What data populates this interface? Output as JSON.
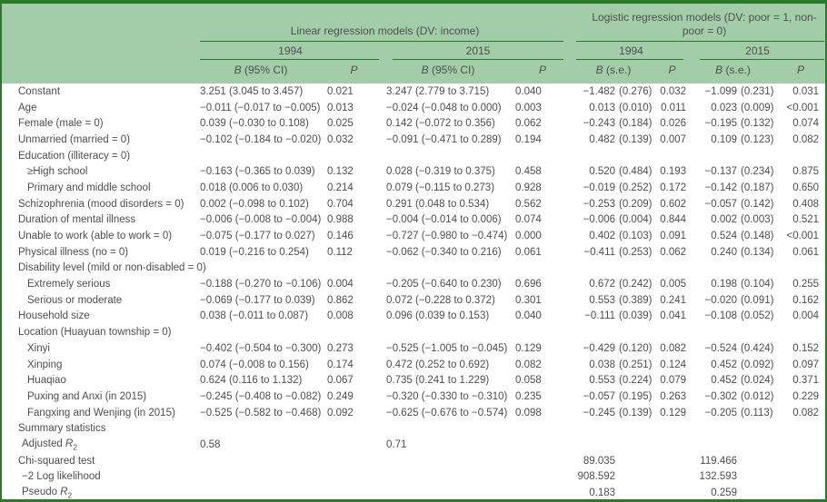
{
  "table": {
    "header": {
      "linear_title": "Linear regression models (DV: income)",
      "logistic_title": "Logistic regression models (DV: poor = 1, non-poor = 0)",
      "year_linear_1994": "1994",
      "year_linear_2015": "2015",
      "year_logistic_1994": "1994",
      "year_logistic_2015": "2015",
      "b_label": "B",
      "ci_suffix": " (95% CI)",
      "se_suffix": " (s.e.)",
      "p_label": "P"
    },
    "colors": {
      "header_bg": "#a3cda8",
      "rule_green": "#2a7a2c",
      "text": "#4d4e50"
    },
    "rows": [
      {
        "label": "Constant",
        "indent": 0,
        "cells": [
          "3.251 (3.045 to 3.457)",
          "0.021",
          "3.247 (2.779 to 3.715)",
          "0.040",
          "−1.482",
          "(0.276)",
          "0.032",
          "−1.099",
          "(0.231)",
          "0.031"
        ]
      },
      {
        "label": "Age",
        "indent": 0,
        "cells": [
          "−0.011 (−0.017 to −0.005)",
          "0.013",
          "−0.024 (−0.048 to 0.000)",
          "0.003",
          "0.013",
          "(0.010)",
          "0.011",
          "0.023",
          "(0.009)",
          "<0.001"
        ]
      },
      {
        "label": "Female (male = 0)",
        "indent": 0,
        "cells": [
          "0.039 (−0.030 to 0.108)",
          "0.025",
          "0.142 (−0.072 to 0.356)",
          "0.062",
          "−0.243",
          "(0.184)",
          "0.026",
          "−0.195",
          "(0.132)",
          "0.074"
        ]
      },
      {
        "label": "Unmarried (married = 0)",
        "indent": 0,
        "cells": [
          "−0.102 (−0.184 to −0.020)",
          "0.032",
          "−0.091 (−0.471 to 0.289)",
          "0.194",
          "0.482",
          "(0.139)",
          "0.007",
          "0.109",
          "(0.123)",
          "0.082"
        ]
      },
      {
        "label": "Education (illiteracy = 0)",
        "indent": 0,
        "cells": [
          "",
          "",
          "",
          "",
          "",
          "",
          "",
          "",
          "",
          ""
        ]
      },
      {
        "label": "≥High school",
        "indent": 2,
        "cells": [
          "−0.163 (−0.365 to 0.039)",
          "0.132",
          "0.028 (−0.319 to 0.375)",
          "0.458",
          "0.520",
          "(0.484)",
          "0.193",
          "−0.137",
          "(0.234)",
          "0.875"
        ]
      },
      {
        "label": "Primary and middle school",
        "indent": 2,
        "cells": [
          "0.018 (0.006 to 0.030)",
          "0.214",
          "0.079 (−0.115 to 0.273)",
          "0.928",
          "−0.019",
          "(0.252)",
          "0.172",
          "−0.142",
          "(0.187)",
          "0.650"
        ]
      },
      {
        "label": "Schizophrenia (mood disorders = 0)",
        "indent": 0,
        "cells": [
          "0.002 (−0.098 to 0.102)",
          "0.704",
          "0.291 (0.048 to 0.534)",
          "0.562",
          "−0.253",
          "(0.209)",
          "0.602",
          "−0.057",
          "(0.142)",
          "0.408"
        ]
      },
      {
        "label": "Duration of mental illness",
        "indent": 0,
        "cells": [
          "−0.006 (−0.008 to −0.004)",
          "0.988",
          "−0.004 (−0.014 to 0.006)",
          "0.074",
          "−0.006",
          "(0.004)",
          "0.844",
          "0.002",
          "(0.003)",
          "0.521"
        ]
      },
      {
        "label": "Unable to work (able to work = 0)",
        "indent": 0,
        "cells": [
          "−0.075 (−0.177 to 0.027)",
          "0.146",
          "−0.727 (−0.980 to −0.474)",
          "0.000",
          "0.402",
          "(0.103)",
          "0.091",
          "0.524",
          "(0.148)",
          "<0.001"
        ]
      },
      {
        "label": "Physical illness (no = 0)",
        "indent": 0,
        "cells": [
          "0.019 (−0.216 to 0.254)",
          "0.112",
          "−0.062 (−0.340 to 0.216)",
          "0.061",
          "−0.411",
          "(0.253)",
          "0.062",
          "0.240",
          "(0.134)",
          "0.061"
        ]
      },
      {
        "label": "Disability level (mild or non-disabled = 0)",
        "indent": 0,
        "cells": [
          "",
          "",
          "",
          "",
          "",
          "",
          "",
          "",
          "",
          ""
        ]
      },
      {
        "label": "Extremely serious",
        "indent": 2,
        "cells": [
          "−0.188 (−0.270 to −0.106)",
          "0.004",
          "−0.205 (−0.640 to 0.230)",
          "0.696",
          "0.672",
          "(0.242)",
          "0.005",
          "0.198",
          "(0.104)",
          "0.255"
        ]
      },
      {
        "label": "Serious or moderate",
        "indent": 2,
        "cells": [
          "−0.069 (−0.177 to 0.039)",
          "0.862",
          "0.072 (−0.228 to 0.372)",
          "0.301",
          "0.553",
          "(0.389)",
          "0.241",
          "−0.020",
          "(0.091)",
          "0.162"
        ]
      },
      {
        "label": "Household size",
        "indent": 0,
        "cells": [
          "0.038 (−0.011 to 0.087)",
          "0.008",
          "0.096 (0.039 to 0.153)",
          "0.040",
          "−0.111",
          "(0.039)",
          "0.041",
          "−0.108",
          "(0.052)",
          "0.004"
        ]
      },
      {
        "label": "Location (Huayuan township = 0)",
        "indent": 0,
        "cells": [
          "",
          "",
          "",
          "",
          "",
          "",
          "",
          "",
          "",
          ""
        ]
      },
      {
        "label": "Xinyi",
        "indent": 2,
        "cells": [
          "−0.402 (−0.504 to −0.300)",
          "0.273",
          "−0.525 (−1.005 to −0.045)",
          "0.129",
          "−0.429",
          "(0.120)",
          "0.082",
          "−0.524",
          "(0.424)",
          "0.152"
        ]
      },
      {
        "label": "Xinping",
        "indent": 2,
        "cells": [
          "0.074 (−0.008 to 0.156)",
          "0.174",
          "0.472 (0.252 to 0.692)",
          "0.082",
          "0.038",
          "(0.251)",
          "0.124",
          "0.452",
          "(0.092)",
          "0.097"
        ]
      },
      {
        "label": "Huaqiao",
        "indent": 2,
        "cells": [
          "0.624 (0.116 to 1.132)",
          "0.067",
          "0.735 (0.241 to 1.229)",
          "0.058",
          "0.553",
          "(0.224)",
          "0.079",
          "0.452",
          "(0.024)",
          "0.371"
        ]
      },
      {
        "label": "Puxing and Anxi (in 2015)",
        "indent": 2,
        "cells": [
          "−0.245 (−0.408 to −0.082)",
          "0.249",
          "−0.320 (−0.330 to −0.310)",
          "0.235",
          "−0.057",
          "(0.195)",
          "0.263",
          "−0.302",
          "(0.012)",
          "0.229"
        ]
      },
      {
        "label": "Fangxing and Wenjing (in 2015)",
        "indent": 2,
        "cells": [
          "−0.525 (−0.582 to −0.468)",
          "0.092",
          "−0.625 (−0.676 to −0.574)",
          "0.098",
          "−0.245",
          "(0.139)",
          "0.129",
          "−0.205",
          "(0.113)",
          "0.082"
        ]
      },
      {
        "label": "Summary statistics",
        "indent": 0,
        "cells": [
          "",
          "",
          "",
          "",
          "",
          "",
          "",
          "",
          "",
          ""
        ]
      },
      {
        "label": "Adjusted ",
        "indent": 1,
        "r2": true,
        "cells": [
          "0.58",
          "",
          "0.71",
          "",
          "",
          "",
          "",
          "",
          "",
          ""
        ]
      },
      {
        "label": "Chi-squared test",
        "indent": 0,
        "cells": [
          "",
          "",
          "",
          "",
          "89.035",
          "",
          "",
          "119.466",
          "",
          ""
        ]
      },
      {
        "label": "−2 Log likelihood",
        "indent": 1,
        "cells": [
          "",
          "",
          "",
          "",
          "908.592",
          "",
          "",
          "132.593",
          "",
          ""
        ]
      },
      {
        "label": "Pseudo ",
        "indent": 1,
        "r2": true,
        "cells": [
          "",
          "",
          "",
          "",
          "0.183",
          "",
          "",
          "0.259",
          "",
          ""
        ]
      }
    ]
  }
}
